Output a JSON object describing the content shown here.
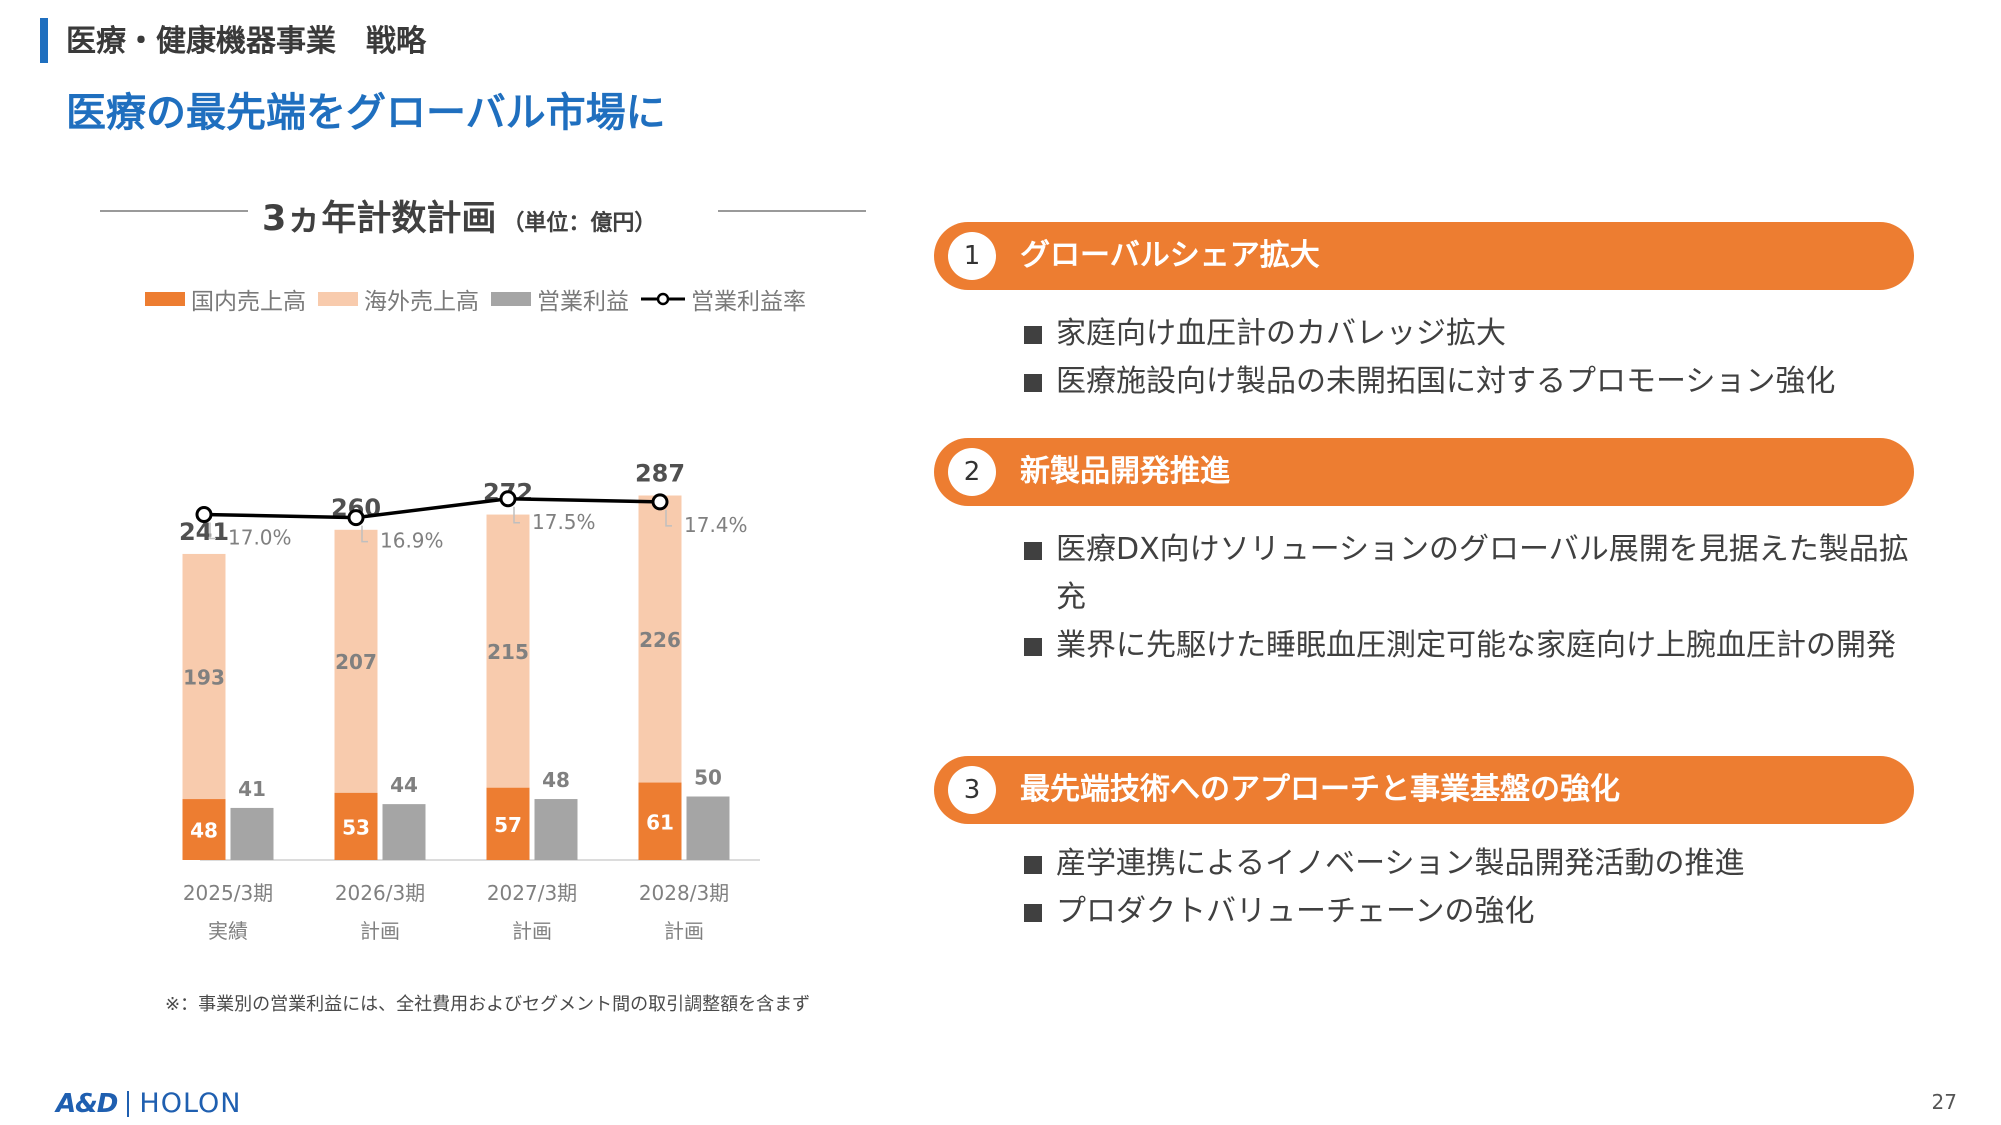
{
  "header": {
    "section": "医療・健康機器事業　戦略",
    "headline": "医療の最先端をグローバル市場に"
  },
  "chart_section": {
    "title": "3ヵ年計数計画",
    "unit": "（単位：億円）"
  },
  "legend": [
    {
      "label": "国内売上高",
      "color": "#ed7d31",
      "kind": "bar"
    },
    {
      "label": "海外売上高",
      "color": "#f8cbad",
      "kind": "bar"
    },
    {
      "label": "営業利益",
      "color": "#a5a5a5",
      "kind": "bar"
    },
    {
      "label": "営業利益率",
      "color": "#000000",
      "kind": "line"
    }
  ],
  "chart_data": {
    "type": "bar",
    "categories": [
      "2025/3期\n実績",
      "2026/3期\n計画",
      "2027/3期\n計画",
      "2028/3期\n計画"
    ],
    "category_lines": [
      [
        "2025/3期",
        "実績"
      ],
      [
        "2026/3期",
        "計画"
      ],
      [
        "2027/3期",
        "計画"
      ],
      [
        "2028/3期",
        "計画"
      ]
    ],
    "series": [
      {
        "name": "国内売上高",
        "values": [
          48,
          53,
          57,
          61
        ],
        "color": "#ed7d31",
        "stack": "sales"
      },
      {
        "name": "海外売上高",
        "values": [
          193,
          207,
          215,
          226
        ],
        "color": "#f8cbad",
        "stack": "sales"
      },
      {
        "name": "営業利益",
        "values": [
          41,
          44,
          48,
          50
        ],
        "color": "#a5a5a5",
        "stack": "profit"
      },
      {
        "name": "営業利益率",
        "values": [
          17.0,
          16.9,
          17.5,
          17.4
        ],
        "unit": "%",
        "type": "line",
        "color": "#000000"
      }
    ],
    "totals": [
      241,
      260,
      272,
      287
    ],
    "totals_labels": [
      "241",
      "260",
      "272",
      "287"
    ],
    "margin_labels": [
      "17.0%",
      "16.9%",
      "17.5%",
      "17.4%"
    ],
    "ylim": [
      0,
      300
    ],
    "margin_ylim": [
      0,
      20
    ],
    "legend_position": "top",
    "grid": false
  },
  "footnote": "※：事業別の営業利益には、全社費用およびセグメント間の取引調整額を含まず",
  "strategies": [
    {
      "num": "1",
      "title": "グローバルシェア拡大",
      "bullets": [
        "家庭向け血圧計のカバレッジ拡大",
        "医療施設向け製品の未開拓国に対するプロモーション強化"
      ]
    },
    {
      "num": "2",
      "title": "新製品開発推進",
      "bullets": [
        "医療DX向けソリューションのグローバル展開を見据えた製品拡充",
        "業界に先駆けた睡眠血圧測定可能な家庭向け上腕血圧計の開発"
      ]
    },
    {
      "num": "3",
      "title": "最先端技術へのアプローチと事業基盤の強化",
      "bullets": [
        "産学連携によるイノベーション製品開発活動の推進",
        "プロダクトバリューチェーンの強化"
      ]
    }
  ],
  "footer": {
    "logo_and": "A&D",
    "logo_holon": "HOLON",
    "page": "27"
  }
}
